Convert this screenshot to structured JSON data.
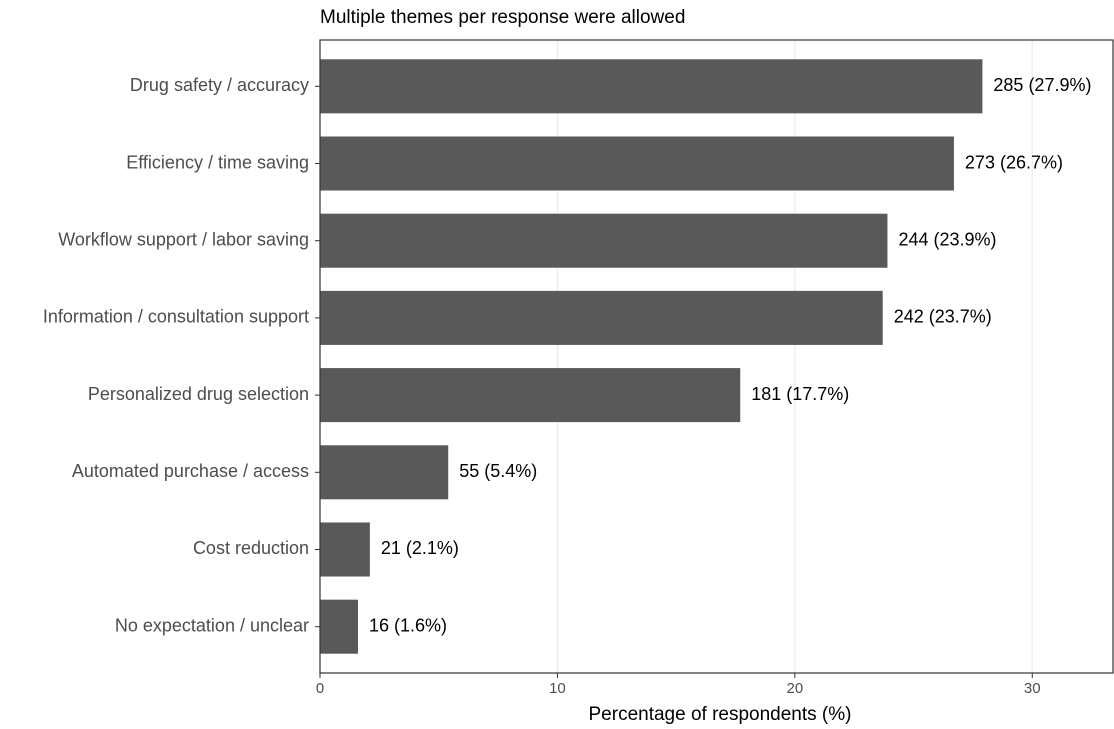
{
  "chart_data": {
    "type": "bar",
    "orientation": "horizontal",
    "title": "Multiple themes per response were allowed",
    "x_label": "Percentage of respondents (%)",
    "categories": [
      "Drug safety / accuracy",
      "Efficiency / time saving",
      "Workflow support / labor saving",
      "Information / consultation support",
      "Personalized drug selection",
      "Automated purchase / access",
      "Cost reduction",
      "No expectation / unclear"
    ],
    "values": [
      27.9,
      26.7,
      23.9,
      23.7,
      17.7,
      5.4,
      2.1,
      1.6
    ],
    "value_labels": [
      "285 (27.9%)",
      "273 (26.7%)",
      "244 (23.9%)",
      "242 (23.7%)",
      "181 (17.7%)",
      "55 (5.4%)",
      "21 (2.1%)",
      "16 (1.6%)"
    ],
    "color": "#595959",
    "xlim": [
      0,
      33.4
    ],
    "xticks": [
      0,
      10,
      20,
      30
    ],
    "grid": true
  }
}
